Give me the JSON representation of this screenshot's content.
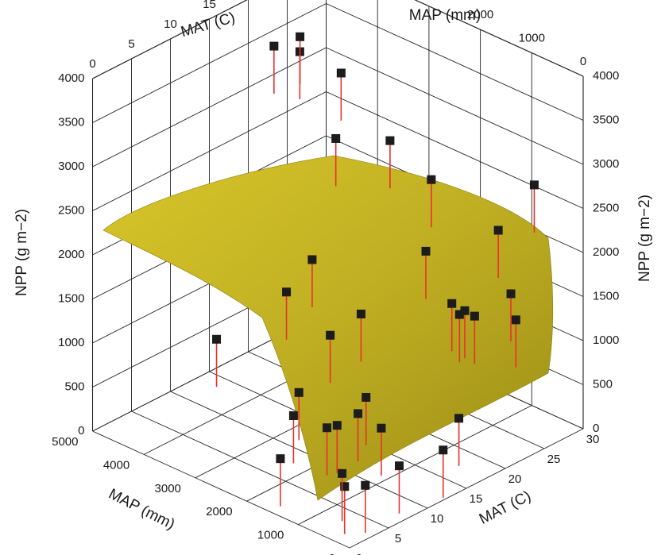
{
  "chart_data": {
    "type": "scatter",
    "surface": true,
    "axes": {
      "x": {
        "label": "MAT (C)",
        "ticks": [
          "0",
          "5",
          "10",
          "15",
          "20",
          "25",
          "30"
        ],
        "range": [
          0,
          30
        ]
      },
      "y": {
        "label": "MAP (mm)",
        "ticks": [
          "0",
          "1000",
          "2000",
          "3000",
          "4000",
          "5000"
        ],
        "range": [
          0,
          5000
        ]
      },
      "z": {
        "label": "NPP (g m−2)",
        "ticks": [
          "0",
          "500",
          "1000",
          "1500",
          "2000",
          "2500",
          "3000",
          "3500",
          "4000"
        ],
        "range": [
          0,
          4000
        ]
      }
    },
    "grid": true,
    "colors": {
      "surface": "#c9b81c",
      "stems": "#e8322b",
      "markers": "#1c1c1c"
    },
    "points": [
      {
        "mat": 2,
        "map": 400,
        "npp": 500
      },
      {
        "mat": 3,
        "map": 600,
        "npp": 550
      },
      {
        "mat": 4,
        "map": 300,
        "npp": 450
      },
      {
        "mat": 5,
        "map": 1000,
        "npp": 900
      },
      {
        "mat": 3,
        "map": 1800,
        "npp": 400
      },
      {
        "mat": 6,
        "map": 2000,
        "npp": 700
      },
      {
        "mat": 7,
        "map": 1500,
        "npp": 650
      },
      {
        "mat": 9,
        "map": 1200,
        "npp": 800
      },
      {
        "mat": 10,
        "map": 2500,
        "npp": 650
      },
      {
        "mat": 11,
        "map": 700,
        "npp": 250
      },
      {
        "mat": 12,
        "map": 1200,
        "npp": 500
      },
      {
        "mat": 14,
        "map": 1800,
        "npp": 600
      },
      {
        "mat": 15,
        "map": 3500,
        "npp": 1300
      },
      {
        "mat": 16,
        "map": 2800,
        "npp": 950
      },
      {
        "mat": 16,
        "map": 2200,
        "npp": 1350
      },
      {
        "mat": 15,
        "map": 3000,
        "npp": 1800
      },
      {
        "mat": 20,
        "map": 4500,
        "npp": 3600
      },
      {
        "mat": 22,
        "map": 4300,
        "npp": 3500
      },
      {
        "mat": 24,
        "map": 3800,
        "npp": 3300
      },
      {
        "mat": 24,
        "map": 4600,
        "npp": 3500
      },
      {
        "mat": 22,
        "map": 3600,
        "npp": 2700
      },
      {
        "mat": 23,
        "map": 2000,
        "npp": 1800
      },
      {
        "mat": 25,
        "map": 3000,
        "npp": 2700
      },
      {
        "mat": 27,
        "map": 2500,
        "npp": 2300
      },
      {
        "mat": 26,
        "map": 1800,
        "npp": 1000
      },
      {
        "mat": 27,
        "map": 2100,
        "npp": 1000
      },
      {
        "mat": 28,
        "map": 2000,
        "npp": 900
      },
      {
        "mat": 29,
        "map": 1500,
        "npp": 1900
      },
      {
        "mat": 29,
        "map": 800,
        "npp": 2600
      },
      {
        "mat": 24,
        "map": 400,
        "npp": 1400
      },
      {
        "mat": 26,
        "map": 800,
        "npp": 1500
      },
      {
        "mat": 22,
        "map": 900,
        "npp": 1400
      },
      {
        "mat": 18,
        "map": 600,
        "npp": 500
      },
      {
        "mat": 14,
        "map": 300,
        "npp": 400
      },
      {
        "mat": 8,
        "map": 3800,
        "npp": 1000
      }
    ]
  }
}
